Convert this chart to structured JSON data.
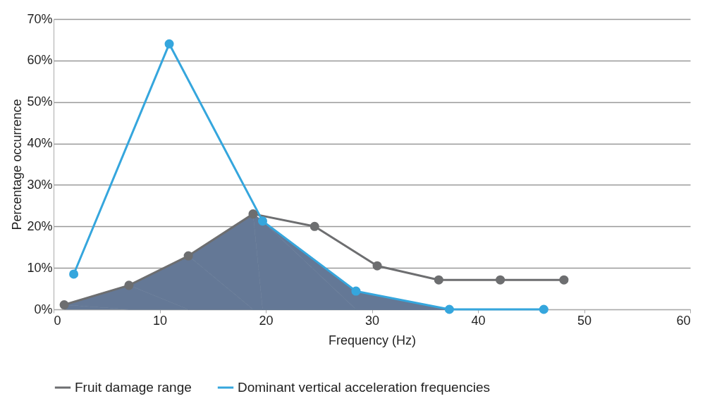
{
  "chart_data": {
    "type": "line",
    "xlabel": "Frequency (Hz)",
    "ylabel": "Percentage occurrence",
    "xlim": [
      0,
      60
    ],
    "xticks": [
      0,
      10,
      20,
      30,
      40,
      50,
      60
    ],
    "ylim": [
      0,
      70
    ],
    "yticks": [
      {
        "value": 0,
        "label": "0%"
      },
      {
        "value": 10,
        "label": "10%"
      },
      {
        "value": 20,
        "label": "20%"
      },
      {
        "value": 30,
        "label": "30%"
      },
      {
        "value": 40,
        "label": "40%"
      },
      {
        "value": 50,
        "label": "50%"
      },
      {
        "value": 60,
        "label": "60%"
      },
      {
        "value": 70,
        "label": "70%"
      }
    ],
    "grid": "y",
    "legend": "bottom",
    "marker": "circle",
    "line_style": "solid",
    "series": [
      {
        "type": "area",
        "marker": "none",
        "color": "#647896",
        "x": [
          1.0,
          7.1,
          12.7,
          18.8,
          19.7,
          28.5,
          37.3
        ],
        "values": [
          1.1,
          5.8,
          12.9,
          23,
          21.3,
          4.4,
          0
        ]
      },
      {
        "name": "Fruit damage range",
        "color": "#6d6e70",
        "x": [
          1.0,
          7.1,
          12.7,
          18.8,
          24.6,
          30.5,
          36.3,
          42.1,
          48.1
        ],
        "values": [
          1.1,
          5.8,
          12.9,
          23,
          20,
          10.5,
          7.1,
          7.1,
          7.1
        ]
      },
      {
        "name": "Dominant vertical acceleration frequencies",
        "color": "#35a6dd",
        "x": [
          1.9,
          10.9,
          19.7,
          28.5,
          37.3,
          46.2
        ],
        "values": [
          8.5,
          64,
          21.3,
          4.4,
          0,
          0
        ]
      }
    ]
  }
}
